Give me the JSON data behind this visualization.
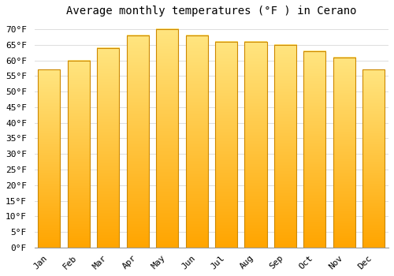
{
  "title": "Average monthly temperatures (°F ) in Cerano",
  "months": [
    "Jan",
    "Feb",
    "Mar",
    "Apr",
    "May",
    "Jun",
    "Jul",
    "Aug",
    "Sep",
    "Oct",
    "Nov",
    "Dec"
  ],
  "values": [
    57,
    60,
    64,
    68,
    70,
    68,
    66,
    66,
    65,
    63,
    61,
    57
  ],
  "bar_color": "#FFA500",
  "bar_top_color": "#FFE066",
  "bar_edge_color": "#CC8800",
  "background_color": "#FFFFFF",
  "grid_color": "#DDDDDD",
  "ylim": [
    0,
    72
  ],
  "ytick_step": 5,
  "title_fontsize": 10,
  "tick_fontsize": 8,
  "font_family": "monospace",
  "bar_width": 0.75
}
